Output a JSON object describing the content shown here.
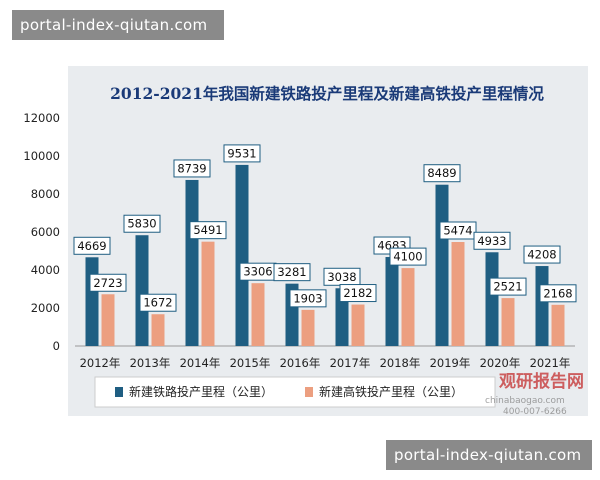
{
  "watermarks": {
    "top": "portal-index-qiutan.com",
    "bottom": "portal-index-qiutan.com"
  },
  "colors": {
    "series1": "#1f5e82",
    "series2": "#ec9f80",
    "title": "#1a3a78",
    "label_border": "#1f5e82"
  },
  "logo": {
    "name": "观研报告网",
    "site": "chinabaogao.com",
    "phone": "400-007-6266"
  },
  "chart_data": {
    "type": "bar",
    "title": "2012-2021年我国新建铁路投产里程及新建高铁投产里程情况",
    "xlabel": "",
    "ylabel": "",
    "categories": [
      "2012年",
      "2013年",
      "2014年",
      "2015年",
      "2016年",
      "2017年",
      "2018年",
      "2019年",
      "2020年",
      "2021年"
    ],
    "series": [
      {
        "name": "新建铁路投产里程（公里）",
        "values": [
          4669,
          5830,
          8739,
          9531,
          3281,
          3038,
          4683,
          8489,
          4933,
          4208
        ]
      },
      {
        "name": "新建高铁投产里程（公里）",
        "values": [
          2723,
          1672,
          5491,
          3306,
          1903,
          2182,
          4100,
          5474,
          2521,
          2168
        ]
      }
    ],
    "ylim": [
      0,
      12000
    ],
    "yticks": [
      "0",
      "2000",
      "4000",
      "6000",
      "8000",
      "10000",
      "12000"
    ],
    "grid": false,
    "legend_position": "bottom"
  }
}
